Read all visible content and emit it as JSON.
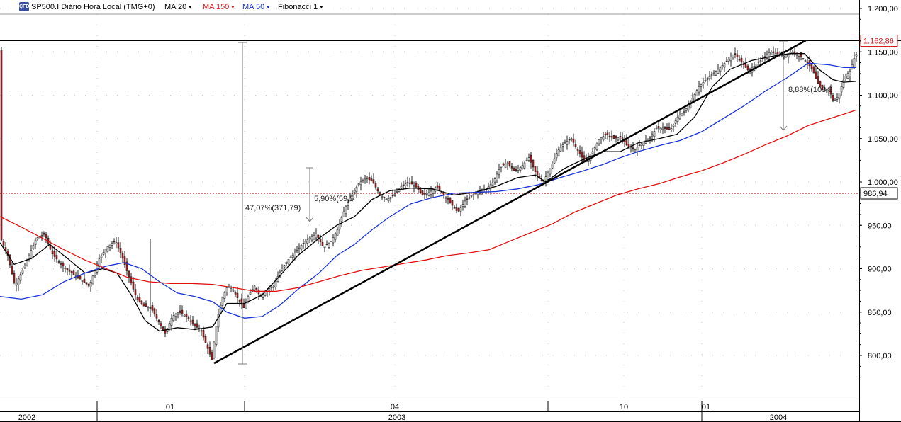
{
  "toolbar": {
    "logo_text": "CFD",
    "symbol": "SP500.I Diário Hora Local (TMG+0)",
    "ma20": "MA 20",
    "ma150": "MA 150",
    "ma50": "MA 50",
    "fibonacci": "Fibonacci 1",
    "caret": "▾"
  },
  "colors": {
    "ma20": "#000000",
    "ma150": "#e01010",
    "ma50": "#1a33d6",
    "candle_up": "#ffffff",
    "candle_down": "#c01818",
    "price_box_text": "#d02020",
    "grid": "#c8c8c8"
  },
  "chart_data": {
    "type": "candlestick",
    "y_axis": {
      "ticks": [
        "1.200,00",
        "1.150,00",
        "1.100,00",
        "1.050,00",
        "1.000,00",
        "950,00",
        "900,00",
        "850,00",
        "800,00"
      ],
      "tick_values": [
        1200,
        1150,
        1100,
        1050,
        1000,
        950,
        900,
        850,
        800
      ],
      "ylim": [
        760,
        1212
      ]
    },
    "x_axis": {
      "month_labels": [
        "01",
        "04",
        "10",
        "01"
      ],
      "year_labels": [
        "2002",
        "2003",
        "2004"
      ]
    },
    "current_price": {
      "label": "1.162,86",
      "value": 1162.86
    },
    "hline": {
      "label": "986,94",
      "value": 986.94
    },
    "annotations": [
      {
        "text": "47,07%(371,79)"
      },
      {
        "text": "5,90%(59,5"
      },
      {
        "text": "8,88%(103,3"
      }
    ],
    "series": [
      {
        "name": "MA 20",
        "color": "#000000",
        "values": [
          [
            0,
            930
          ],
          [
            20,
            905
          ],
          [
            45,
            912
          ],
          [
            70,
            928
          ],
          [
            95,
            912
          ],
          [
            120,
            895
          ],
          [
            145,
            900
          ],
          [
            165,
            895
          ],
          [
            185,
            870
          ],
          [
            205,
            840
          ],
          [
            225,
            828
          ],
          [
            250,
            832
          ],
          [
            275,
            830
          ],
          [
            300,
            833
          ],
          [
            320,
            860
          ],
          [
            345,
            860
          ],
          [
            370,
            870
          ],
          [
            395,
            892
          ],
          [
            420,
            915
          ],
          [
            450,
            935
          ],
          [
            475,
            950
          ],
          [
            500,
            960
          ],
          [
            525,
            980
          ],
          [
            550,
            990
          ],
          [
            580,
            993
          ],
          [
            610,
            992
          ],
          [
            640,
            985
          ],
          [
            670,
            988
          ],
          [
            700,
            995
          ],
          [
            730,
            1005
          ],
          [
            755,
            1008
          ],
          [
            770,
            1000
          ],
          [
            795,
            1015
          ],
          [
            820,
            1025
          ],
          [
            850,
            1035
          ],
          [
            875,
            1035
          ],
          [
            900,
            1045
          ],
          [
            930,
            1050
          ],
          [
            955,
            1055
          ],
          [
            980,
            1075
          ],
          [
            1005,
            1110
          ],
          [
            1030,
            1130
          ],
          [
            1060,
            1140
          ],
          [
            1090,
            1145
          ],
          [
            1115,
            1148
          ],
          [
            1135,
            1148
          ],
          [
            1155,
            1130
          ],
          [
            1175,
            1118
          ],
          [
            1190,
            1115
          ],
          [
            1208,
            1116
          ]
        ]
      },
      {
        "name": "MA 50",
        "color": "#1a33d6",
        "values": [
          [
            0,
            868
          ],
          [
            30,
            865
          ],
          [
            60,
            870
          ],
          [
            90,
            885
          ],
          [
            120,
            895
          ],
          [
            150,
            903
          ],
          [
            175,
            907
          ],
          [
            200,
            900
          ],
          [
            225,
            885
          ],
          [
            250,
            872
          ],
          [
            275,
            868
          ],
          [
            300,
            862
          ],
          [
            320,
            850
          ],
          [
            345,
            843
          ],
          [
            370,
            845
          ],
          [
            395,
            858
          ],
          [
            420,
            876
          ],
          [
            450,
            895
          ],
          [
            475,
            915
          ],
          [
            500,
            928
          ],
          [
            525,
            945
          ],
          [
            550,
            960
          ],
          [
            580,
            975
          ],
          [
            610,
            982
          ],
          [
            640,
            987
          ],
          [
            670,
            988
          ],
          [
            700,
            989
          ],
          [
            730,
            992
          ],
          [
            760,
            997
          ],
          [
            790,
            1005
          ],
          [
            820,
            1012
          ],
          [
            850,
            1020
          ],
          [
            875,
            1028
          ],
          [
            900,
            1035
          ],
          [
            930,
            1042
          ],
          [
            960,
            1048
          ],
          [
            990,
            1058
          ],
          [
            1020,
            1073
          ],
          [
            1050,
            1088
          ],
          [
            1080,
            1105
          ],
          [
            1110,
            1120
          ],
          [
            1140,
            1137
          ],
          [
            1170,
            1135
          ],
          [
            1190,
            1132
          ],
          [
            1208,
            1132
          ]
        ]
      },
      {
        "name": "MA 150",
        "color": "#e01010",
        "values": [
          [
            0,
            960
          ],
          [
            30,
            948
          ],
          [
            60,
            935
          ],
          [
            90,
            922
          ],
          [
            120,
            910
          ],
          [
            150,
            900
          ],
          [
            180,
            890
          ],
          [
            210,
            885
          ],
          [
            240,
            883
          ],
          [
            270,
            883
          ],
          [
            300,
            882
          ],
          [
            330,
            878
          ],
          [
            360,
            874
          ],
          [
            390,
            874
          ],
          [
            420,
            878
          ],
          [
            450,
            885
          ],
          [
            480,
            892
          ],
          [
            510,
            898
          ],
          [
            540,
            902
          ],
          [
            570,
            906
          ],
          [
            600,
            910
          ],
          [
            630,
            915
          ],
          [
            660,
            918
          ],
          [
            690,
            922
          ],
          [
            720,
            932
          ],
          [
            750,
            942
          ],
          [
            780,
            952
          ],
          [
            810,
            965
          ],
          [
            840,
            975
          ],
          [
            870,
            985
          ],
          [
            900,
            992
          ],
          [
            930,
            998
          ],
          [
            960,
            1006
          ],
          [
            990,
            1013
          ],
          [
            1020,
            1022
          ],
          [
            1050,
            1032
          ],
          [
            1080,
            1043
          ],
          [
            1110,
            1053
          ],
          [
            1140,
            1065
          ],
          [
            1170,
            1073
          ],
          [
            1190,
            1078
          ],
          [
            1208,
            1083
          ]
        ]
      },
      {
        "name": "Price",
        "color": "#333333",
        "values": [
          [
            0,
            935
          ],
          [
            10,
            915
          ],
          [
            20,
            880
          ],
          [
            35,
            905
          ],
          [
            50,
            935
          ],
          [
            62,
            940
          ],
          [
            72,
            918
          ],
          [
            85,
            905
          ],
          [
            100,
            895
          ],
          [
            112,
            888
          ],
          [
            125,
            880
          ],
          [
            138,
            910
          ],
          [
            150,
            925
          ],
          [
            162,
            932
          ],
          [
            172,
            912
          ],
          [
            182,
            888
          ],
          [
            192,
            865
          ],
          [
            202,
            857
          ],
          [
            212,
            855
          ],
          [
            222,
            840
          ],
          [
            232,
            825
          ],
          [
            242,
            845
          ],
          [
            252,
            850
          ],
          [
            262,
            845
          ],
          [
            272,
            835
          ],
          [
            282,
            830
          ],
          [
            292,
            808
          ],
          [
            298,
            795
          ],
          [
            305,
            840
          ],
          [
            312,
            865
          ],
          [
            320,
            880
          ],
          [
            328,
            875
          ],
          [
            335,
            865
          ],
          [
            343,
            855
          ],
          [
            350,
            870
          ],
          [
            358,
            880
          ],
          [
            366,
            868
          ],
          [
            375,
            875
          ],
          [
            385,
            880
          ],
          [
            395,
            898
          ],
          [
            405,
            910
          ],
          [
            415,
            918
          ],
          [
            425,
            928
          ],
          [
            435,
            935
          ],
          [
            445,
            940
          ],
          [
            455,
            925
          ],
          [
            465,
            930
          ],
          [
            475,
            945
          ],
          [
            485,
            968
          ],
          [
            495,
            985
          ],
          [
            505,
            998
          ],
          [
            515,
            1005
          ],
          [
            525,
            1000
          ],
          [
            535,
            985
          ],
          [
            545,
            980
          ],
          [
            555,
            985
          ],
          [
            565,
            995
          ],
          [
            575,
            1000
          ],
          [
            585,
            995
          ],
          [
            595,
            985
          ],
          [
            605,
            988
          ],
          [
            615,
            995
          ],
          [
            625,
            985
          ],
          [
            635,
            975
          ],
          [
            645,
            965
          ],
          [
            655,
            978
          ],
          [
            665,
            985
          ],
          [
            675,
            990
          ],
          [
            685,
            992
          ],
          [
            695,
            1000
          ],
          [
            705,
            1018
          ],
          [
            715,
            1022
          ],
          [
            725,
            1012
          ],
          [
            735,
            1018
          ],
          [
            745,
            1028
          ],
          [
            755,
            1010
          ],
          [
            765,
            1000
          ],
          [
            775,
            1015
          ],
          [
            785,
            1035
          ],
          [
            795,
            1045
          ],
          [
            805,
            1050
          ],
          [
            815,
            1035
          ],
          [
            825,
            1022
          ],
          [
            835,
            1035
          ],
          [
            845,
            1050
          ],
          [
            855,
            1055
          ],
          [
            865,
            1050
          ],
          [
            875,
            1052
          ],
          [
            885,
            1040
          ],
          [
            895,
            1038
          ],
          [
            905,
            1045
          ],
          [
            915,
            1050
          ],
          [
            925,
            1062
          ],
          [
            935,
            1062
          ],
          [
            945,
            1060
          ],
          [
            955,
            1075
          ],
          [
            965,
            1082
          ],
          [
            975,
            1095
          ],
          [
            985,
            1110
          ],
          [
            995,
            1118
          ],
          [
            1005,
            1125
          ],
          [
            1015,
            1132
          ],
          [
            1025,
            1140
          ],
          [
            1035,
            1148
          ],
          [
            1045,
            1138
          ],
          [
            1055,
            1128
          ],
          [
            1065,
            1135
          ],
          [
            1075,
            1142
          ],
          [
            1085,
            1150
          ],
          [
            1095,
            1148
          ],
          [
            1105,
            1145
          ],
          [
            1115,
            1150
          ],
          [
            1125,
            1147
          ],
          [
            1135,
            1140
          ],
          [
            1145,
            1130
          ],
          [
            1152,
            1115
          ],
          [
            1160,
            1105
          ],
          [
            1168,
            1108
          ],
          [
            1175,
            1092
          ],
          [
            1182,
            1100
          ],
          [
            1190,
            1120
          ],
          [
            1198,
            1128
          ],
          [
            1205,
            1145
          ],
          [
            1212,
            1152
          ]
        ]
      }
    ]
  }
}
